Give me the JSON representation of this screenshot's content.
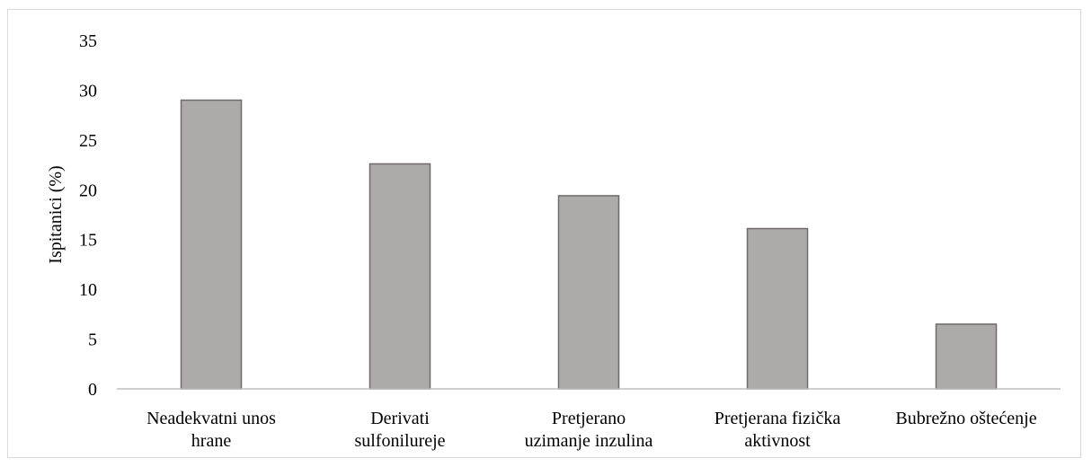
{
  "chart_data": {
    "type": "bar",
    "title": "",
    "xlabel": "",
    "ylabel": "Ispitanici (%)",
    "categories": [
      [
        "Neadekvatni unos",
        "hrane"
      ],
      [
        "Derivati",
        "sulfonilureje"
      ],
      [
        "Pretjerano",
        "uzimanje inzulina"
      ],
      [
        "Pretjerana fizička",
        "aktivnost"
      ],
      [
        "Bubrežno oštećenje"
      ]
    ],
    "values": [
      29.0,
      22.6,
      19.4,
      16.1,
      6.5
    ],
    "ylim": [
      0,
      35
    ],
    "yticks": [
      "0",
      "5",
      "10",
      "15",
      "20",
      "25",
      "30",
      "35"
    ],
    "grid": false,
    "colors": {
      "bar_fill": "#aeaaaa",
      "bar_stroke": "#6f6a6a",
      "axis": "#bfbfbf"
    }
  }
}
